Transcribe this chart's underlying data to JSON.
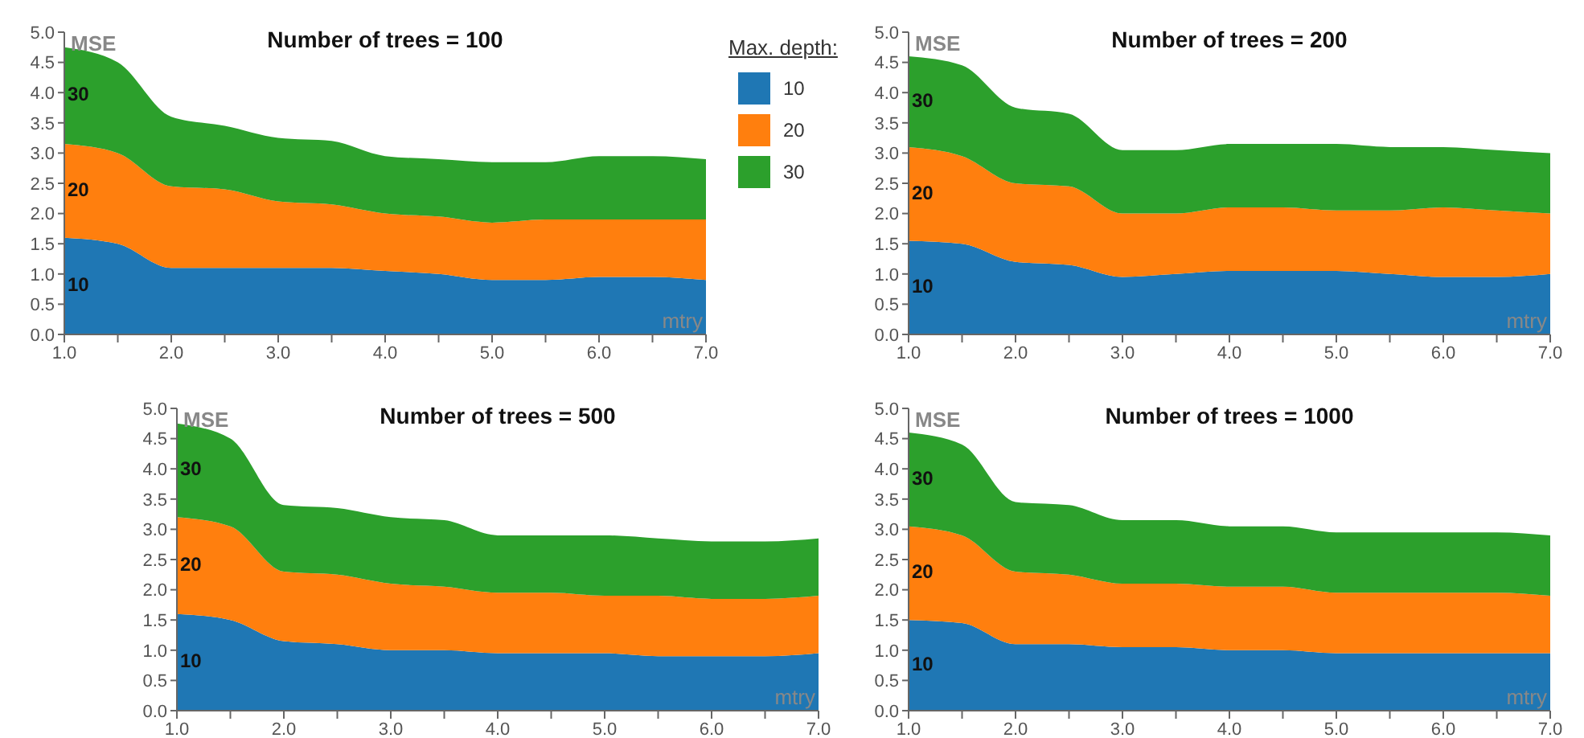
{
  "chart_data": [
    {
      "type": "area",
      "title": "Number of trees = 100",
      "xlabel": "mtry",
      "ylabel": "MSE",
      "stacked": true,
      "legend": "right",
      "legend_title": "Max. depth:",
      "grid": false,
      "x": [
        1,
        1.5,
        2,
        2.5,
        3,
        3.5,
        4,
        4.5,
        5,
        5.5,
        6,
        6.5,
        7
      ],
      "xlim": [
        1,
        7
      ],
      "xticks": [
        {
          "value": 1,
          "label": "1.0"
        },
        {
          "value": 1.5,
          "label": null
        },
        {
          "value": 2,
          "label": "2.0"
        },
        {
          "value": 2.5,
          "label": null
        },
        {
          "value": 3,
          "label": "3.0"
        },
        {
          "value": 3.5,
          "label": null
        },
        {
          "value": 4,
          "label": "4.0"
        },
        {
          "value": 4.5,
          "label": null
        },
        {
          "value": 5,
          "label": "5.0"
        },
        {
          "value": 5.5,
          "label": null
        },
        {
          "value": 6,
          "label": "6.0"
        },
        {
          "value": 6.5,
          "label": null
        },
        {
          "value": 7,
          "label": "7.0"
        }
      ],
      "ylim": [
        0,
        5
      ],
      "yticks": [
        {
          "value": 0,
          "label": "0.0"
        },
        {
          "value": 0.5,
          "label": "0.5"
        },
        {
          "value": 1,
          "label": "1.0"
        },
        {
          "value": 1.5,
          "label": "1.5"
        },
        {
          "value": 2,
          "label": "2.0"
        },
        {
          "value": 2.5,
          "label": "2.5"
        },
        {
          "value": 3,
          "label": "3.0"
        },
        {
          "value": 3.5,
          "label": "3.5"
        },
        {
          "value": 4,
          "label": "4.0"
        },
        {
          "value": 4.5,
          "label": "4.5"
        },
        {
          "value": 5,
          "label": "5.0"
        }
      ],
      "series": [
        {
          "name": "10",
          "color": "#1f77b4",
          "values": [
            1.6,
            1.5,
            1.1,
            1.1,
            1.1,
            1.1,
            1.05,
            1.0,
            0.9,
            0.9,
            0.95,
            0.95,
            0.9
          ]
        },
        {
          "name": "20",
          "color": "#ff7f0e",
          "values": [
            1.55,
            1.5,
            1.35,
            1.3,
            1.1,
            1.05,
            0.95,
            0.95,
            0.95,
            1.0,
            0.95,
            0.95,
            1.0
          ]
        },
        {
          "name": "30",
          "color": "#2ca02c",
          "values": [
            1.6,
            1.5,
            1.15,
            1.05,
            1.05,
            1.05,
            0.95,
            0.95,
            1.0,
            0.95,
            1.05,
            1.05,
            1.0
          ]
        }
      ]
    },
    {
      "type": "area",
      "title": "Number of trees = 200",
      "xlabel": "mtry",
      "ylabel": "MSE",
      "stacked": true,
      "grid": false,
      "x": [
        1,
        1.5,
        2,
        2.5,
        3,
        3.5,
        4,
        4.5,
        5,
        5.5,
        6,
        6.5,
        7
      ],
      "xlim": [
        1,
        7
      ],
      "xticks": [
        {
          "value": 1,
          "label": "1.0"
        },
        {
          "value": 1.5,
          "label": null
        },
        {
          "value": 2,
          "label": "2.0"
        },
        {
          "value": 2.5,
          "label": null
        },
        {
          "value": 3,
          "label": "3.0"
        },
        {
          "value": 3.5,
          "label": null
        },
        {
          "value": 4,
          "label": "4.0"
        },
        {
          "value": 4.5,
          "label": null
        },
        {
          "value": 5,
          "label": "5.0"
        },
        {
          "value": 5.5,
          "label": null
        },
        {
          "value": 6,
          "label": "6.0"
        },
        {
          "value": 6.5,
          "label": null
        },
        {
          "value": 7,
          "label": "7.0"
        }
      ],
      "ylim": [
        0,
        5
      ],
      "yticks": [
        {
          "value": 0,
          "label": "0.0"
        },
        {
          "value": 0.5,
          "label": "0.5"
        },
        {
          "value": 1,
          "label": "1.0"
        },
        {
          "value": 1.5,
          "label": "1.5"
        },
        {
          "value": 2,
          "label": "2.0"
        },
        {
          "value": 2.5,
          "label": "2.5"
        },
        {
          "value": 3,
          "label": "3.0"
        },
        {
          "value": 3.5,
          "label": "3.5"
        },
        {
          "value": 4,
          "label": "4.0"
        },
        {
          "value": 4.5,
          "label": "4.5"
        },
        {
          "value": 5,
          "label": "5.0"
        }
      ],
      "series": [
        {
          "name": "10",
          "color": "#1f77b4",
          "values": [
            1.55,
            1.5,
            1.2,
            1.15,
            0.95,
            1.0,
            1.05,
            1.05,
            1.05,
            1.0,
            0.95,
            0.95,
            1.0
          ]
        },
        {
          "name": "20",
          "color": "#ff7f0e",
          "values": [
            1.55,
            1.45,
            1.3,
            1.3,
            1.05,
            1.0,
            1.05,
            1.05,
            1.0,
            1.05,
            1.15,
            1.1,
            1.0
          ]
        },
        {
          "name": "30",
          "color": "#2ca02c",
          "values": [
            1.5,
            1.5,
            1.25,
            1.2,
            1.05,
            1.05,
            1.05,
            1.05,
            1.1,
            1.05,
            1.0,
            1.0,
            1.0
          ]
        }
      ]
    },
    {
      "type": "area",
      "title": "Number of trees = 500",
      "xlabel": "mtry",
      "ylabel": "MSE",
      "stacked": true,
      "grid": false,
      "x": [
        1,
        1.5,
        2,
        2.5,
        3,
        3.5,
        4,
        4.5,
        5,
        5.5,
        6,
        6.5,
        7
      ],
      "xlim": [
        1,
        7
      ],
      "xticks": [
        {
          "value": 1,
          "label": "1.0"
        },
        {
          "value": 1.5,
          "label": null
        },
        {
          "value": 2,
          "label": "2.0"
        },
        {
          "value": 2.5,
          "label": null
        },
        {
          "value": 3,
          "label": "3.0"
        },
        {
          "value": 3.5,
          "label": null
        },
        {
          "value": 4,
          "label": "4.0"
        },
        {
          "value": 4.5,
          "label": null
        },
        {
          "value": 5,
          "label": "5.0"
        },
        {
          "value": 5.5,
          "label": null
        },
        {
          "value": 6,
          "label": "6.0"
        },
        {
          "value": 6.5,
          "label": null
        },
        {
          "value": 7,
          "label": "7.0"
        }
      ],
      "ylim": [
        0,
        5
      ],
      "yticks": [
        {
          "value": 0,
          "label": "0.0"
        },
        {
          "value": 0.5,
          "label": "0.5"
        },
        {
          "value": 1,
          "label": "1.0"
        },
        {
          "value": 1.5,
          "label": "1.5"
        },
        {
          "value": 2,
          "label": "2.0"
        },
        {
          "value": 2.5,
          "label": "2.5"
        },
        {
          "value": 3,
          "label": "3.0"
        },
        {
          "value": 3.5,
          "label": "3.5"
        },
        {
          "value": 4,
          "label": "4.0"
        },
        {
          "value": 4.5,
          "label": "4.5"
        },
        {
          "value": 5,
          "label": "5.0"
        }
      ],
      "series": [
        {
          "name": "10",
          "color": "#1f77b4",
          "values": [
            1.6,
            1.5,
            1.15,
            1.1,
            1.0,
            1.0,
            0.95,
            0.95,
            0.95,
            0.9,
            0.9,
            0.9,
            0.95
          ]
        },
        {
          "name": "20",
          "color": "#ff7f0e",
          "values": [
            1.6,
            1.55,
            1.15,
            1.15,
            1.1,
            1.05,
            1.0,
            1.0,
            0.95,
            1.0,
            0.95,
            0.95,
            0.95
          ]
        },
        {
          "name": "30",
          "color": "#2ca02c",
          "values": [
            1.55,
            1.45,
            1.1,
            1.1,
            1.1,
            1.1,
            0.95,
            0.95,
            1.0,
            0.95,
            0.95,
            0.95,
            0.95
          ]
        }
      ]
    },
    {
      "type": "area",
      "title": "Number of trees = 1000",
      "xlabel": "mtry",
      "ylabel": "MSE",
      "stacked": true,
      "grid": false,
      "x": [
        1,
        1.5,
        2,
        2.5,
        3,
        3.5,
        4,
        4.5,
        5,
        5.5,
        6,
        6.5,
        7
      ],
      "xlim": [
        1,
        7
      ],
      "xticks": [
        {
          "value": 1,
          "label": "1.0"
        },
        {
          "value": 1.5,
          "label": null
        },
        {
          "value": 2,
          "label": "2.0"
        },
        {
          "value": 2.5,
          "label": null
        },
        {
          "value": 3,
          "label": "3.0"
        },
        {
          "value": 3.5,
          "label": null
        },
        {
          "value": 4,
          "label": "4.0"
        },
        {
          "value": 4.5,
          "label": null
        },
        {
          "value": 5,
          "label": "5.0"
        },
        {
          "value": 5.5,
          "label": null
        },
        {
          "value": 6,
          "label": "6.0"
        },
        {
          "value": 6.5,
          "label": null
        },
        {
          "value": 7,
          "label": "7.0"
        }
      ],
      "ylim": [
        0,
        5
      ],
      "yticks": [
        {
          "value": 0,
          "label": "0.0"
        },
        {
          "value": 0.5,
          "label": "0.5"
        },
        {
          "value": 1,
          "label": "1.0"
        },
        {
          "value": 1.5,
          "label": "1.5"
        },
        {
          "value": 2,
          "label": "2.0"
        },
        {
          "value": 2.5,
          "label": "2.5"
        },
        {
          "value": 3,
          "label": "3.0"
        },
        {
          "value": 3.5,
          "label": "3.5"
        },
        {
          "value": 4,
          "label": "4.0"
        },
        {
          "value": 4.5,
          "label": "4.5"
        },
        {
          "value": 5,
          "label": "5.0"
        }
      ],
      "series": [
        {
          "name": "10",
          "color": "#1f77b4",
          "values": [
            1.5,
            1.45,
            1.1,
            1.1,
            1.05,
            1.05,
            1.0,
            1.0,
            0.95,
            0.95,
            0.95,
            0.95,
            0.95
          ]
        },
        {
          "name": "20",
          "color": "#ff7f0e",
          "values": [
            1.55,
            1.45,
            1.2,
            1.15,
            1.05,
            1.05,
            1.05,
            1.05,
            1.0,
            1.0,
            1.0,
            1.0,
            0.95
          ]
        },
        {
          "name": "30",
          "color": "#2ca02c",
          "values": [
            1.55,
            1.5,
            1.15,
            1.15,
            1.05,
            1.05,
            1.0,
            1.0,
            1.0,
            1.0,
            1.0,
            1.0,
            1.0
          ]
        }
      ]
    }
  ]
}
